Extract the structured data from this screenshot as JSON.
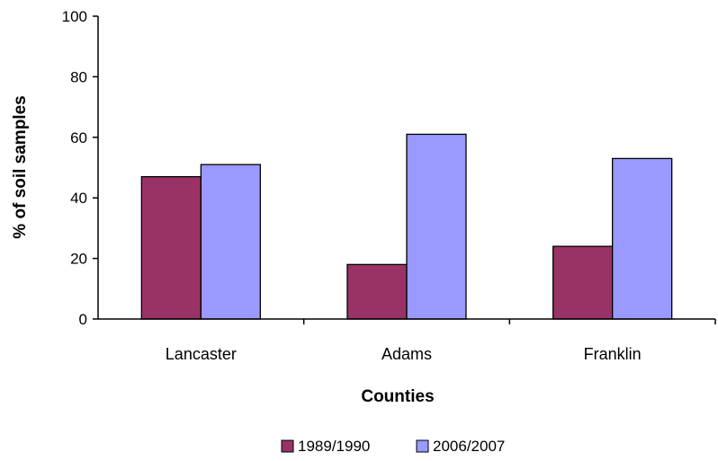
{
  "chart_data": {
    "type": "bar",
    "title": "",
    "xlabel": "Counties",
    "ylabel": "% of soil samples",
    "categories": [
      "Lancaster",
      "Adams",
      "Franklin"
    ],
    "series": [
      {
        "name": "1989/1990",
        "values": [
          47,
          18,
          24
        ],
        "color": "#993366"
      },
      {
        "name": "2006/2007",
        "values": [
          51,
          61,
          53
        ],
        "color": "#9999ff"
      }
    ],
    "ylim": [
      0,
      100
    ],
    "yticks": [
      0,
      20,
      40,
      60,
      80,
      100
    ],
    "grid": false,
    "legend_position": "bottom"
  }
}
